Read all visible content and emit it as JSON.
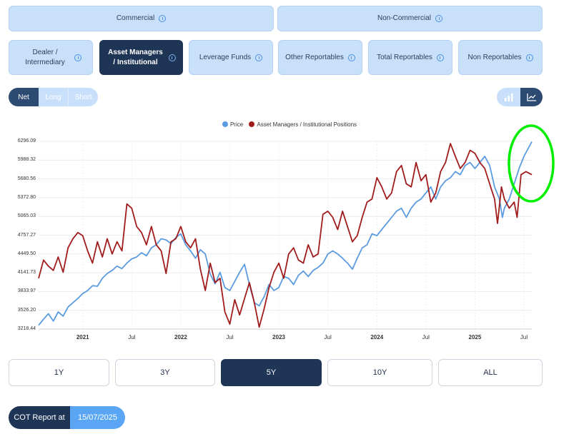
{
  "top_tabs": [
    {
      "label": "Commercial",
      "active": false
    },
    {
      "label": "Non-Commercial",
      "active": false
    }
  ],
  "sub_tabs": [
    {
      "label": "Dealer / Intermediary",
      "active": false
    },
    {
      "label": "Asset Managers / Institutional",
      "active": true
    },
    {
      "label": "Leverage Funds",
      "active": false
    },
    {
      "label": "Other Reportables",
      "active": false
    },
    {
      "label": "Total Reportables",
      "active": false
    },
    {
      "label": "Non Reportables",
      "active": false
    }
  ],
  "position_toggle": {
    "net": "Net",
    "long": "Long",
    "short": "Short",
    "selected": "Net"
  },
  "chart_type_toggle": {
    "bar_icon": "bar-chart-icon",
    "line_icon": "line-chart-icon",
    "selected": "line"
  },
  "chart_data": {
    "type": "line",
    "legend": [
      "Price",
      "Asset Managers / Institutional Positions"
    ],
    "legend_placement": "top-center",
    "series_colors": [
      "#5b9be0",
      "#a01c1c"
    ],
    "y_ticks": [
      "6296.09",
      "5988.32",
      "5680.56",
      "5372.80",
      "5065.03",
      "4757.27",
      "4449.50",
      "4141.73",
      "3833.97",
      "3526.20",
      "3218.44"
    ],
    "ylim": [
      3218.44,
      6296.09
    ],
    "x_ticks": [
      {
        "label": "2021",
        "bold": true,
        "t": 2021.0
      },
      {
        "label": "Jul",
        "bold": false,
        "t": 2021.5
      },
      {
        "label": "2022",
        "bold": true,
        "t": 2022.0
      },
      {
        "label": "Jul",
        "bold": false,
        "t": 2022.5
      },
      {
        "label": "2023",
        "bold": true,
        "t": 2023.0
      },
      {
        "label": "Jul",
        "bold": false,
        "t": 2023.5
      },
      {
        "label": "2024",
        "bold": true,
        "t": 2024.0
      },
      {
        "label": "Jul",
        "bold": false,
        "t": 2024.5
      },
      {
        "label": "2025",
        "bold": true,
        "t": 2025.0
      },
      {
        "label": "Jul",
        "bold": false,
        "t": 2025.5
      }
    ],
    "xlim": [
      2020.55,
      2025.58
    ],
    "grid": true,
    "series": [
      {
        "name": "Price",
        "points": [
          [
            2020.55,
            3280
          ],
          [
            2020.6,
            3380
          ],
          [
            2020.65,
            3470
          ],
          [
            2020.7,
            3350
          ],
          [
            2020.75,
            3500
          ],
          [
            2020.8,
            3430
          ],
          [
            2020.85,
            3580
          ],
          [
            2020.9,
            3650
          ],
          [
            2020.95,
            3720
          ],
          [
            2021.0,
            3800
          ],
          [
            2021.05,
            3850
          ],
          [
            2021.1,
            3930
          ],
          [
            2021.15,
            3920
          ],
          [
            2021.2,
            4050
          ],
          [
            2021.25,
            4130
          ],
          [
            2021.3,
            4180
          ],
          [
            2021.35,
            4250
          ],
          [
            2021.4,
            4210
          ],
          [
            2021.45,
            4300
          ],
          [
            2021.5,
            4370
          ],
          [
            2021.55,
            4400
          ],
          [
            2021.6,
            4470
          ],
          [
            2021.65,
            4420
          ],
          [
            2021.7,
            4550
          ],
          [
            2021.75,
            4600
          ],
          [
            2021.8,
            4700
          ],
          [
            2021.85,
            4680
          ],
          [
            2021.9,
            4620
          ],
          [
            2021.95,
            4720
          ],
          [
            2022.0,
            4780
          ],
          [
            2022.05,
            4600
          ],
          [
            2022.1,
            4500
          ],
          [
            2022.15,
            4380
          ],
          [
            2022.2,
            4520
          ],
          [
            2022.25,
            4450
          ],
          [
            2022.3,
            4120
          ],
          [
            2022.35,
            3960
          ],
          [
            2022.4,
            4150
          ],
          [
            2022.45,
            3900
          ],
          [
            2022.5,
            3850
          ],
          [
            2022.55,
            4000
          ],
          [
            2022.6,
            4150
          ],
          [
            2022.65,
            4280
          ],
          [
            2022.7,
            3950
          ],
          [
            2022.75,
            3650
          ],
          [
            2022.8,
            3600
          ],
          [
            2022.85,
            3750
          ],
          [
            2022.9,
            3950
          ],
          [
            2022.95,
            3850
          ],
          [
            2023.0,
            3900
          ],
          [
            2023.05,
            4080
          ],
          [
            2023.1,
            4050
          ],
          [
            2023.15,
            3950
          ],
          [
            2023.2,
            4100
          ],
          [
            2023.25,
            4170
          ],
          [
            2023.3,
            4080
          ],
          [
            2023.35,
            4180
          ],
          [
            2023.4,
            4230
          ],
          [
            2023.45,
            4300
          ],
          [
            2023.5,
            4450
          ],
          [
            2023.55,
            4500
          ],
          [
            2023.6,
            4450
          ],
          [
            2023.65,
            4380
          ],
          [
            2023.7,
            4300
          ],
          [
            2023.75,
            4200
          ],
          [
            2023.8,
            4380
          ],
          [
            2023.85,
            4550
          ],
          [
            2023.9,
            4600
          ],
          [
            2023.95,
            4780
          ],
          [
            2024.0,
            4750
          ],
          [
            2024.05,
            4850
          ],
          [
            2024.1,
            4950
          ],
          [
            2024.15,
            5050
          ],
          [
            2024.2,
            5150
          ],
          [
            2024.25,
            5200
          ],
          [
            2024.3,
            5050
          ],
          [
            2024.35,
            5200
          ],
          [
            2024.4,
            5300
          ],
          [
            2024.45,
            5350
          ],
          [
            2024.5,
            5450
          ],
          [
            2024.55,
            5550
          ],
          [
            2024.6,
            5350
          ],
          [
            2024.65,
            5550
          ],
          [
            2024.7,
            5650
          ],
          [
            2024.75,
            5700
          ],
          [
            2024.8,
            5800
          ],
          [
            2024.85,
            5750
          ],
          [
            2024.9,
            5900
          ],
          [
            2024.95,
            5950
          ],
          [
            2025.0,
            5850
          ],
          [
            2025.05,
            5950
          ],
          [
            2025.1,
            6050
          ],
          [
            2025.15,
            5900
          ],
          [
            2025.2,
            5550
          ],
          [
            2025.25,
            5350
          ],
          [
            2025.28,
            5050
          ],
          [
            2025.3,
            5200
          ],
          [
            2025.35,
            5350
          ],
          [
            2025.4,
            5600
          ],
          [
            2025.45,
            5850
          ],
          [
            2025.5,
            6050
          ],
          [
            2025.55,
            6200
          ],
          [
            2025.58,
            6290
          ]
        ]
      },
      {
        "name": "Asset Managers / Institutional Positions",
        "points": [
          [
            2020.55,
            4050
          ],
          [
            2020.6,
            4350
          ],
          [
            2020.65,
            4250
          ],
          [
            2020.7,
            4180
          ],
          [
            2020.75,
            4400
          ],
          [
            2020.8,
            4150
          ],
          [
            2020.85,
            4550
          ],
          [
            2020.9,
            4700
          ],
          [
            2020.95,
            4800
          ],
          [
            2021.0,
            4750
          ],
          [
            2021.05,
            4500
          ],
          [
            2021.1,
            4300
          ],
          [
            2021.15,
            4650
          ],
          [
            2021.2,
            4400
          ],
          [
            2021.25,
            4700
          ],
          [
            2021.3,
            4450
          ],
          [
            2021.35,
            4650
          ],
          [
            2021.4,
            4500
          ],
          [
            2021.45,
            5270
          ],
          [
            2021.5,
            5200
          ],
          [
            2021.55,
            4900
          ],
          [
            2021.6,
            4800
          ],
          [
            2021.65,
            4600
          ],
          [
            2021.7,
            4900
          ],
          [
            2021.75,
            4600
          ],
          [
            2021.8,
            4500
          ],
          [
            2021.85,
            4130
          ],
          [
            2021.9,
            4650
          ],
          [
            2021.95,
            4700
          ],
          [
            2022.0,
            4900
          ],
          [
            2022.05,
            4650
          ],
          [
            2022.1,
            4550
          ],
          [
            2022.15,
            4700
          ],
          [
            2022.2,
            4200
          ],
          [
            2022.25,
            3850
          ],
          [
            2022.3,
            4300
          ],
          [
            2022.35,
            3980
          ],
          [
            2022.4,
            4050
          ],
          [
            2022.45,
            3500
          ],
          [
            2022.5,
            3300
          ],
          [
            2022.55,
            3700
          ],
          [
            2022.6,
            3450
          ],
          [
            2022.65,
            3720
          ],
          [
            2022.7,
            3980
          ],
          [
            2022.75,
            3650
          ],
          [
            2022.8,
            3250
          ],
          [
            2022.85,
            3550
          ],
          [
            2022.9,
            3900
          ],
          [
            2022.95,
            4150
          ],
          [
            2023.0,
            4300
          ],
          [
            2023.05,
            4050
          ],
          [
            2023.1,
            4450
          ],
          [
            2023.15,
            4550
          ],
          [
            2023.2,
            4350
          ],
          [
            2023.25,
            4300
          ],
          [
            2023.3,
            4600
          ],
          [
            2023.35,
            4400
          ],
          [
            2023.4,
            4450
          ],
          [
            2023.45,
            5100
          ],
          [
            2023.5,
            5150
          ],
          [
            2023.55,
            5050
          ],
          [
            2023.6,
            4850
          ],
          [
            2023.65,
            5150
          ],
          [
            2023.7,
            4900
          ],
          [
            2023.75,
            4650
          ],
          [
            2023.8,
            4750
          ],
          [
            2023.85,
            5050
          ],
          [
            2023.9,
            5300
          ],
          [
            2023.95,
            5350
          ],
          [
            2024.0,
            5700
          ],
          [
            2024.05,
            5550
          ],
          [
            2024.1,
            5350
          ],
          [
            2024.15,
            5450
          ],
          [
            2024.2,
            5800
          ],
          [
            2024.25,
            5900
          ],
          [
            2024.3,
            5600
          ],
          [
            2024.35,
            5550
          ],
          [
            2024.4,
            5950
          ],
          [
            2024.45,
            5650
          ],
          [
            2024.5,
            5750
          ],
          [
            2024.55,
            5300
          ],
          [
            2024.6,
            5450
          ],
          [
            2024.65,
            5800
          ],
          [
            2024.7,
            5950
          ],
          [
            2024.75,
            6260
          ],
          [
            2024.8,
            6050
          ],
          [
            2024.85,
            5850
          ],
          [
            2024.9,
            5950
          ],
          [
            2024.95,
            6150
          ],
          [
            2025.0,
            6100
          ],
          [
            2025.05,
            5950
          ],
          [
            2025.1,
            5850
          ],
          [
            2025.15,
            5600
          ],
          [
            2025.2,
            5350
          ],
          [
            2025.23,
            4950
          ],
          [
            2025.27,
            5550
          ],
          [
            2025.3,
            5350
          ],
          [
            2025.35,
            5200
          ],
          [
            2025.4,
            5300
          ],
          [
            2025.43,
            5050
          ],
          [
            2025.47,
            5750
          ],
          [
            2025.52,
            5800
          ],
          [
            2025.58,
            5750
          ]
        ]
      }
    ]
  },
  "range_buttons": [
    {
      "label": "1Y",
      "active": false
    },
    {
      "label": "3Y",
      "active": false
    },
    {
      "label": "5Y",
      "active": true
    },
    {
      "label": "10Y",
      "active": false
    },
    {
      "label": "ALL",
      "active": false
    }
  ],
  "cot_report": {
    "label": "COT Report at",
    "date": "15/07/2025"
  },
  "annotation": {
    "shape": "ellipse",
    "color": "#00ee00"
  }
}
